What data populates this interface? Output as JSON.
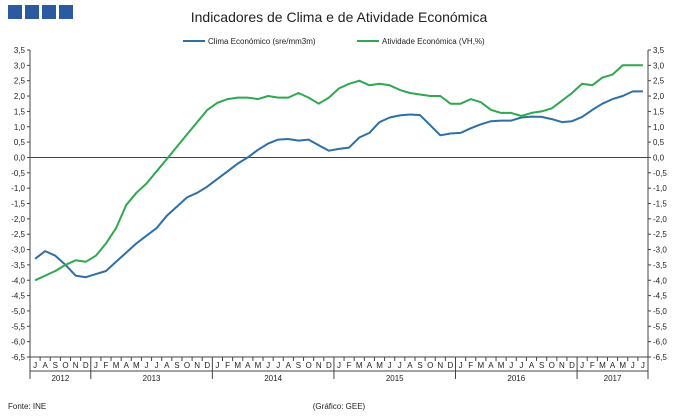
{
  "colors": {
    "clima": "#2e6fa7",
    "atividade": "#2fa84f",
    "logo": "#2b5aa0",
    "axis": "#444444"
  },
  "footer": {
    "source": "Fonte: INE",
    "credit": "(Gráfico: GEE)"
  },
  "chart_data": {
    "type": "line",
    "title": "Indicadores de Clima e de Atividade Económica",
    "ylim": [
      -6.5,
      3.5
    ],
    "y_ticks": [
      "3,5",
      "3,0",
      "2,5",
      "2,0",
      "1,5",
      "1,0",
      "0,5",
      "0,0",
      "-0,5",
      "-1,0",
      "-1,5",
      "-2,0",
      "-2,5",
      "-3,0",
      "-3,5",
      "-4,0",
      "-4,5",
      "-5,0",
      "-5,5",
      "-6,0",
      "-6,5"
    ],
    "x_months": [
      "J",
      "A",
      "S",
      "O",
      "N",
      "D",
      "J",
      "F",
      "M",
      "A",
      "M",
      "J",
      "J",
      "A",
      "S",
      "O",
      "N",
      "D",
      "J",
      "F",
      "M",
      "A",
      "M",
      "J",
      "J",
      "A",
      "S",
      "O",
      "N",
      "D",
      "J",
      "F",
      "M",
      "A",
      "M",
      "J",
      "J",
      "A",
      "S",
      "O",
      "N",
      "D",
      "J",
      "F",
      "M",
      "A",
      "M",
      "J",
      "J",
      "A",
      "S",
      "O",
      "N",
      "D",
      "J",
      "F",
      "M",
      "A",
      "M",
      "J",
      "J"
    ],
    "years": [
      {
        "label": "2012",
        "start": 0,
        "end": 5
      },
      {
        "label": "2013",
        "start": 6,
        "end": 17
      },
      {
        "label": "2014",
        "start": 18,
        "end": 29
      },
      {
        "label": "2015",
        "start": 30,
        "end": 41
      },
      {
        "label": "2016",
        "start": 42,
        "end": 53
      },
      {
        "label": "2017",
        "start": 54,
        "end": 60
      }
    ],
    "series": [
      {
        "name": "Clima Económico (sre/mm3m)",
        "color_key": "clima",
        "values": [
          -3.3,
          -3.05,
          -3.2,
          -3.5,
          -3.85,
          -3.9,
          -3.8,
          -3.7,
          -3.4,
          -3.1,
          -2.8,
          -2.55,
          -2.3,
          -1.9,
          -1.6,
          -1.3,
          -1.15,
          -0.95,
          -0.7,
          -0.45,
          -0.2,
          0.0,
          0.25,
          0.45,
          0.58,
          0.6,
          0.55,
          0.58,
          0.4,
          0.22,
          0.28,
          0.32,
          0.65,
          0.8,
          1.15,
          1.3,
          1.37,
          1.4,
          1.38,
          1.05,
          0.72,
          0.78,
          0.8,
          0.95,
          1.08,
          1.18,
          1.2,
          1.2,
          1.3,
          1.33,
          1.32,
          1.25,
          1.15,
          1.18,
          1.32,
          1.55,
          1.75,
          1.9,
          2.0,
          2.15,
          2.15
        ]
      },
      {
        "name": "Atividade Económica (VH,%)",
        "color_key": "atividade",
        "values": [
          -4.0,
          -3.85,
          -3.7,
          -3.5,
          -3.35,
          -3.4,
          -3.2,
          -2.8,
          -2.3,
          -1.55,
          -1.15,
          -0.85,
          -0.45,
          -0.05,
          0.35,
          0.75,
          1.15,
          1.55,
          1.78,
          1.9,
          1.95,
          1.95,
          1.9,
          2.0,
          1.95,
          1.95,
          2.1,
          1.95,
          1.75,
          1.95,
          2.25,
          2.4,
          2.5,
          2.35,
          2.4,
          2.35,
          2.2,
          2.1,
          2.05,
          2.0,
          2.0,
          1.75,
          1.75,
          1.9,
          1.8,
          1.55,
          1.45,
          1.45,
          1.35,
          1.45,
          1.5,
          1.6,
          1.85,
          2.1,
          2.4,
          2.35,
          2.6,
          2.7,
          3.0,
          3.0,
          3.0
        ]
      }
    ]
  }
}
